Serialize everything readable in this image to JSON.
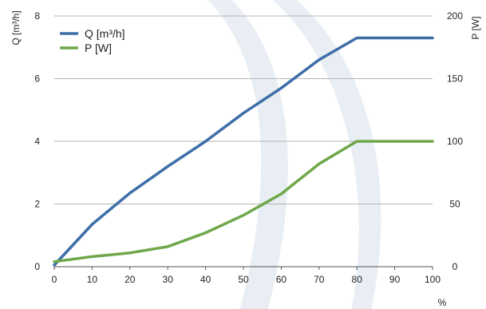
{
  "chart_data": {
    "type": "line",
    "x": [
      0,
      10,
      20,
      30,
      40,
      50,
      60,
      70,
      80,
      90,
      100
    ],
    "xlabel": "%",
    "xlim": [
      0,
      100
    ],
    "xticks": [
      "0",
      "10",
      "20",
      "30",
      "40",
      "50",
      "60",
      "70",
      "80",
      "90",
      "100"
    ],
    "y_left": {
      "label": "Q [m³/h]",
      "lim": [
        0,
        8
      ],
      "ticks": [
        "0",
        "2",
        "4",
        "6",
        "8"
      ]
    },
    "y_right": {
      "label": "P [W]",
      "lim": [
        0,
        200
      ],
      "ticks": [
        "0",
        "50",
        "100",
        "150",
        "200"
      ]
    },
    "grid": "horizontal",
    "legend_position": "top-left",
    "series": [
      {
        "name": "Q [m³/h]",
        "axis": "left",
        "color": "#3e6ea8",
        "values": [
          0.05,
          1.35,
          2.35,
          3.2,
          4.0,
          4.9,
          5.7,
          6.6,
          7.3,
          7.3,
          7.3
        ]
      },
      {
        "name": "P [W]",
        "axis": "right",
        "color": "#6ea84a",
        "values": [
          4,
          8,
          11,
          16,
          27,
          41,
          58,
          82,
          100,
          100,
          100
        ]
      }
    ],
    "watermark_color": "#e8eef3"
  }
}
